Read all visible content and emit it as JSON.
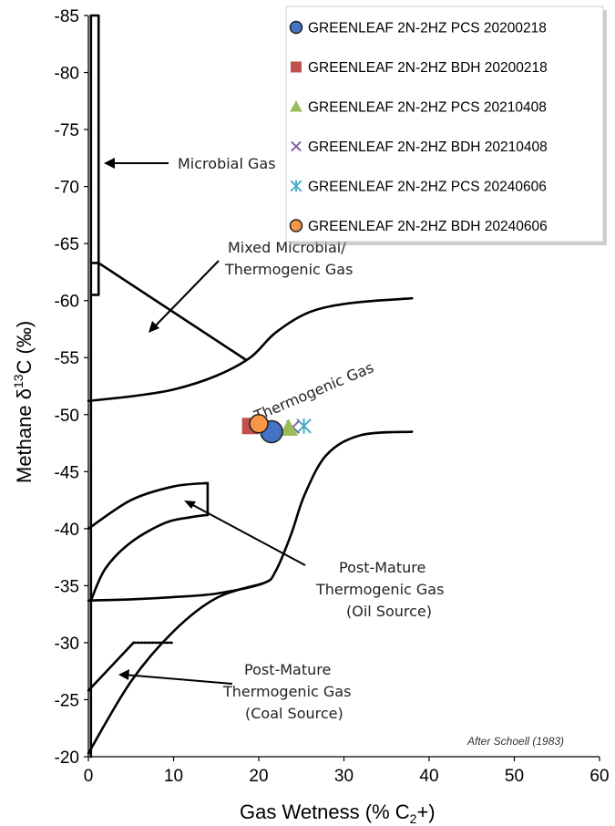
{
  "chart_data": {
    "type": "scatter",
    "xlabel_main": "Gas Wetness (% C",
    "xlabel_sub": "2",
    "xlabel_tail": "+)",
    "ylabel_main": "Methane  δ",
    "ylabel_sup": "13",
    "ylabel_tail": "C (‰)",
    "xlim": [
      0,
      60
    ],
    "ylim": [
      -20,
      -85
    ],
    "x_ticks": [
      0,
      10,
      20,
      30,
      40,
      50,
      60
    ],
    "y_ticks": [
      -85,
      -80,
      -75,
      -70,
      -65,
      -60,
      -55,
      -50,
      -45,
      -40,
      -35,
      -30,
      -25,
      -20
    ],
    "grid": false,
    "legend_position": "top-right",
    "series": [
      {
        "name": "GREENLEAF 2N-2HZ PCS 20200218",
        "marker": "circle",
        "color": "#4472C4",
        "points": [
          [
            21.5,
            -48.5
          ]
        ]
      },
      {
        "name": "GREENLEAF 2N-2HZ BDH 20200218",
        "marker": "square",
        "color": "#C0504D",
        "points": [
          [
            19.0,
            -49.0
          ]
        ]
      },
      {
        "name": "GREENLEAF 2N-2HZ PCS 20210408",
        "marker": "triangle",
        "color": "#9BBB59",
        "points": [
          [
            23.5,
            -48.8
          ]
        ]
      },
      {
        "name": "GREENLEAF 2N-2HZ BDH 20210408",
        "marker": "x",
        "color": "#8064A2",
        "points": [
          [
            24.0,
            -48.9
          ]
        ]
      },
      {
        "name": "GREENLEAF 2N-2HZ PCS 20240606",
        "marker": "star",
        "color": "#4BACC6",
        "points": [
          [
            25.3,
            -49.0
          ]
        ]
      },
      {
        "name": "GREENLEAF 2N-2HZ BDH 20240606",
        "marker": "circle",
        "color": "#F79646",
        "points": [
          [
            20.0,
            -49.2
          ]
        ]
      }
    ],
    "annotations": [
      {
        "text": "Microbial Gas"
      },
      {
        "text": "Mixed Microbial/"
      },
      {
        "text": "Thermogenic Gas"
      },
      {
        "text": "Thermogenic Gas"
      },
      {
        "text": "Post-Mature"
      },
      {
        "text": "Thermogenic Gas"
      },
      {
        "text": "(Oil Source)"
      },
      {
        "text": "Post-Mature"
      },
      {
        "text": "Thermogenic Gas"
      },
      {
        "text": "(Coal Source)"
      }
    ],
    "credit": "After Schoell (1983)",
    "boundaries": {
      "microbial_box": [
        [
          0.3,
          -20
        ],
        [
          0.3,
          -85
        ],
        [
          1.2,
          -85
        ],
        [
          1.2,
          -60.5
        ],
        [
          0.3,
          -60.5
        ]
      ],
      "microbial_cap": [
        [
          0.3,
          -63.3
        ],
        [
          1.2,
          -63.3
        ]
      ],
      "mixed_diagonal": [
        [
          1.2,
          -63.3
        ],
        [
          18.5,
          -54.8
        ]
      ],
      "thermogenic_upper": [
        [
          0,
          -51.2
        ],
        [
          5,
          -51.6
        ],
        [
          10,
          -52.2
        ],
        [
          15,
          -53.4
        ],
        [
          19,
          -55.0
        ],
        [
          22,
          -57.2
        ],
        [
          26,
          -59.0
        ],
        [
          31,
          -59.8
        ],
        [
          38,
          -60.2
        ]
      ],
      "thermogenic_lower": [
        [
          0,
          -33.7
        ],
        [
          5,
          -33.8
        ],
        [
          10,
          -34.0
        ],
        [
          15,
          -34.3
        ],
        [
          20.5,
          -35.2
        ],
        [
          22,
          -36.3
        ],
        [
          23.8,
          -39.5
        ],
        [
          25.4,
          -43.0
        ],
        [
          28,
          -46.5
        ],
        [
          32,
          -48.2
        ],
        [
          38,
          -48.5
        ]
      ],
      "oil_top": [
        [
          0,
          -40.0
        ],
        [
          5,
          -42.5
        ],
        [
          10,
          -43.7
        ],
        [
          14,
          -44.0
        ]
      ],
      "oil_right": [
        [
          14,
          -44.0
        ],
        [
          14,
          -41.2
        ]
      ],
      "oil_inner": [
        [
          0.3,
          -33.7
        ],
        [
          2,
          -36.5
        ],
        [
          5,
          -38.8
        ],
        [
          9,
          -40.5
        ],
        [
          12,
          -41.0
        ],
        [
          14,
          -41.2
        ]
      ],
      "coal_outer": [
        [
          0,
          -25.8
        ],
        [
          5.3,
          -30.0
        ]
      ],
      "coal_top": [
        [
          5.3,
          -30.0
        ],
        [
          10,
          -30.0
        ]
      ],
      "coal_lower": [
        [
          0,
          -20.3
        ],
        [
          5,
          -26.6
        ],
        [
          10,
          -31.0
        ],
        [
          15,
          -33.9
        ],
        [
          20.5,
          -35.2
        ]
      ]
    }
  }
}
